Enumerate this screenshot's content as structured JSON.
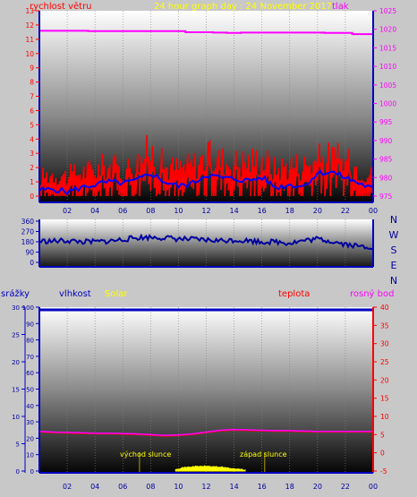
{
  "header": {
    "title": "24 hour graph day : 24 November 2017",
    "left_label": "rychlost větru",
    "right_label": "tlak"
  },
  "colors": {
    "wind": "#ff0000",
    "wind_avg": "#0000ff",
    "pressure": "#ff00ff",
    "direction": "#0000a0",
    "temperature": "#ff0000",
    "dew_point": "#ff00ff",
    "rain": "#0000c0",
    "solar": "#ffff00",
    "axis": "#0000c0",
    "title": "#ffff00"
  },
  "x_ticks": [
    "02",
    "04",
    "06",
    "08",
    "10",
    "12",
    "14",
    "16",
    "18",
    "20",
    "22",
    "00"
  ],
  "wind_panel": {
    "left_ticks": [
      "0",
      "1",
      "2",
      "3",
      "4",
      "5",
      "6",
      "7",
      "8",
      "9",
      "10",
      "11",
      "12",
      "13"
    ],
    "right_ticks": [
      "975",
      "980",
      "985",
      "990",
      "995",
      "1000",
      "1005",
      "1010",
      "1015",
      "1020",
      "1025"
    ]
  },
  "dir_panel": {
    "left_ticks": [
      "0",
      "90",
      "180",
      "270",
      "360"
    ],
    "right_ticks": [
      "N",
      "W",
      "S",
      "E",
      "N"
    ]
  },
  "lower_panel": {
    "labels": {
      "rain": "srážky",
      "humidity": "vlhkost",
      "solar": "Solar",
      "temperature": "teplota",
      "dew_point": "rosný bod"
    },
    "humidity_ticks": [
      "0",
      "10",
      "20",
      "30",
      "40",
      "50",
      "60",
      "70",
      "80",
      "90",
      "100"
    ],
    "rain_ticks": [
      "0",
      "5",
      "10",
      "15",
      "20",
      "25",
      "30"
    ],
    "temp_ticks": [
      "-5",
      "0",
      "5",
      "10",
      "15",
      "20",
      "25",
      "30",
      "35",
      "40"
    ],
    "sunrise_label": "východ slunce",
    "sunset_label": "západ slunce"
  },
  "chart_data": [
    {
      "type": "line",
      "name": "wind_pressure",
      "x": [
        0,
        1,
        2,
        3,
        4,
        5,
        6,
        7,
        8,
        9,
        10,
        11,
        12,
        13,
        14,
        15,
        16,
        17,
        18,
        19,
        20,
        21,
        22,
        23,
        24
      ],
      "series": [
        {
          "name": "gust",
          "axis": "left",
          "values": [
            1.5,
            1.8,
            1.6,
            1.9,
            2.1,
            2.4,
            2.0,
            2.6,
            3.5,
            2.3,
            2.2,
            2.4,
            3.0,
            2.8,
            2.6,
            2.7,
            2.9,
            2.1,
            2.5,
            2.4,
            2.8,
            3.0,
            2.6,
            2.3,
            1.6
          ]
        },
        {
          "name": "average",
          "axis": "left",
          "values": [
            0.4,
            0.5,
            0.3,
            0.6,
            0.8,
            1.0,
            0.9,
            1.1,
            1.6,
            1.0,
            0.7,
            0.9,
            1.5,
            1.3,
            1.2,
            1.1,
            1.3,
            0.6,
            0.8,
            0.7,
            1.6,
            1.7,
            1.3,
            0.9,
            0.5
          ]
        },
        {
          "name": "pressure",
          "axis": "right",
          "values": [
            1019.6,
            1019.6,
            1019.6,
            1019.6,
            1019.5,
            1019.5,
            1019.5,
            1019.5,
            1019.5,
            1019.5,
            1019.5,
            1019.2,
            1019.2,
            1019.1,
            1019.0,
            1019.1,
            1019.1,
            1019.1,
            1019.1,
            1019.1,
            1019.1,
            1019.0,
            1019.0,
            1018.7,
            1018.7
          ]
        }
      ],
      "ylim_left": [
        0,
        13
      ],
      "ylim_right": [
        975,
        1025
      ]
    },
    {
      "type": "line",
      "name": "wind_direction",
      "x": [
        0,
        1,
        2,
        3,
        4,
        5,
        6,
        7,
        8,
        9,
        10,
        11,
        12,
        13,
        14,
        15,
        16,
        17,
        18,
        19,
        20,
        21,
        22,
        23,
        24
      ],
      "series": [
        {
          "name": "direction",
          "values": [
            185,
            185,
            190,
            180,
            180,
            185,
            200,
            215,
            220,
            215,
            205,
            200,
            195,
            190,
            195,
            190,
            180,
            180,
            170,
            190,
            205,
            185,
            160,
            140,
            135
          ]
        }
      ],
      "ylim": [
        0,
        360
      ]
    },
    {
      "type": "line",
      "name": "temperature_solar_rain",
      "x": [
        0,
        1,
        2,
        3,
        4,
        5,
        6,
        7,
        8,
        9,
        10,
        11,
        12,
        13,
        14,
        15,
        16,
        17,
        18,
        19,
        20,
        21,
        22,
        23,
        24
      ],
      "series": [
        {
          "name": "temperature",
          "axis": "right",
          "values": [
            5.8,
            5.6,
            5.5,
            5.4,
            5.3,
            5.3,
            5.2,
            5.1,
            4.9,
            4.7,
            4.8,
            5.1,
            5.6,
            6.1,
            6.3,
            6.2,
            6.1,
            6.0,
            6.0,
            5.9,
            5.8,
            5.8,
            5.8,
            5.8,
            5.8
          ]
        },
        {
          "name": "dew_point",
          "axis": "right",
          "values": [
            5.9,
            5.7,
            5.6,
            5.5,
            5.4,
            5.4,
            5.3,
            5.2,
            5.0,
            4.8,
            4.9,
            5.2,
            5.7,
            6.2,
            6.4,
            6.3,
            6.2,
            6.1,
            6.1,
            6.0,
            5.9,
            5.9,
            5.9,
            5.9,
            5.9
          ]
        },
        {
          "name": "solar",
          "axis": "right",
          "values": [
            -5,
            -5,
            -5,
            -5,
            -5,
            -5,
            -5,
            -5,
            -5,
            -5,
            -4.5,
            -4.0,
            -3.9,
            -4.1,
            -4.6,
            -5,
            -5,
            -5,
            -5,
            -5,
            -5,
            -5,
            -5,
            -5,
            -5
          ]
        },
        {
          "name": "rain",
          "axis": "rain",
          "values": [
            0,
            0,
            0,
            0,
            0,
            0,
            0,
            0,
            0,
            0,
            0,
            0,
            0,
            0,
            0,
            0,
            0,
            0,
            0,
            0,
            0,
            0,
            0,
            0,
            0
          ]
        }
      ],
      "ylim_temp": [
        -5,
        40
      ],
      "ylim_rain": [
        0,
        30
      ],
      "ylim_humidity": [
        0,
        100
      ],
      "sunrise_hour": 7.2,
      "sunset_hour": 16.2
    }
  ]
}
